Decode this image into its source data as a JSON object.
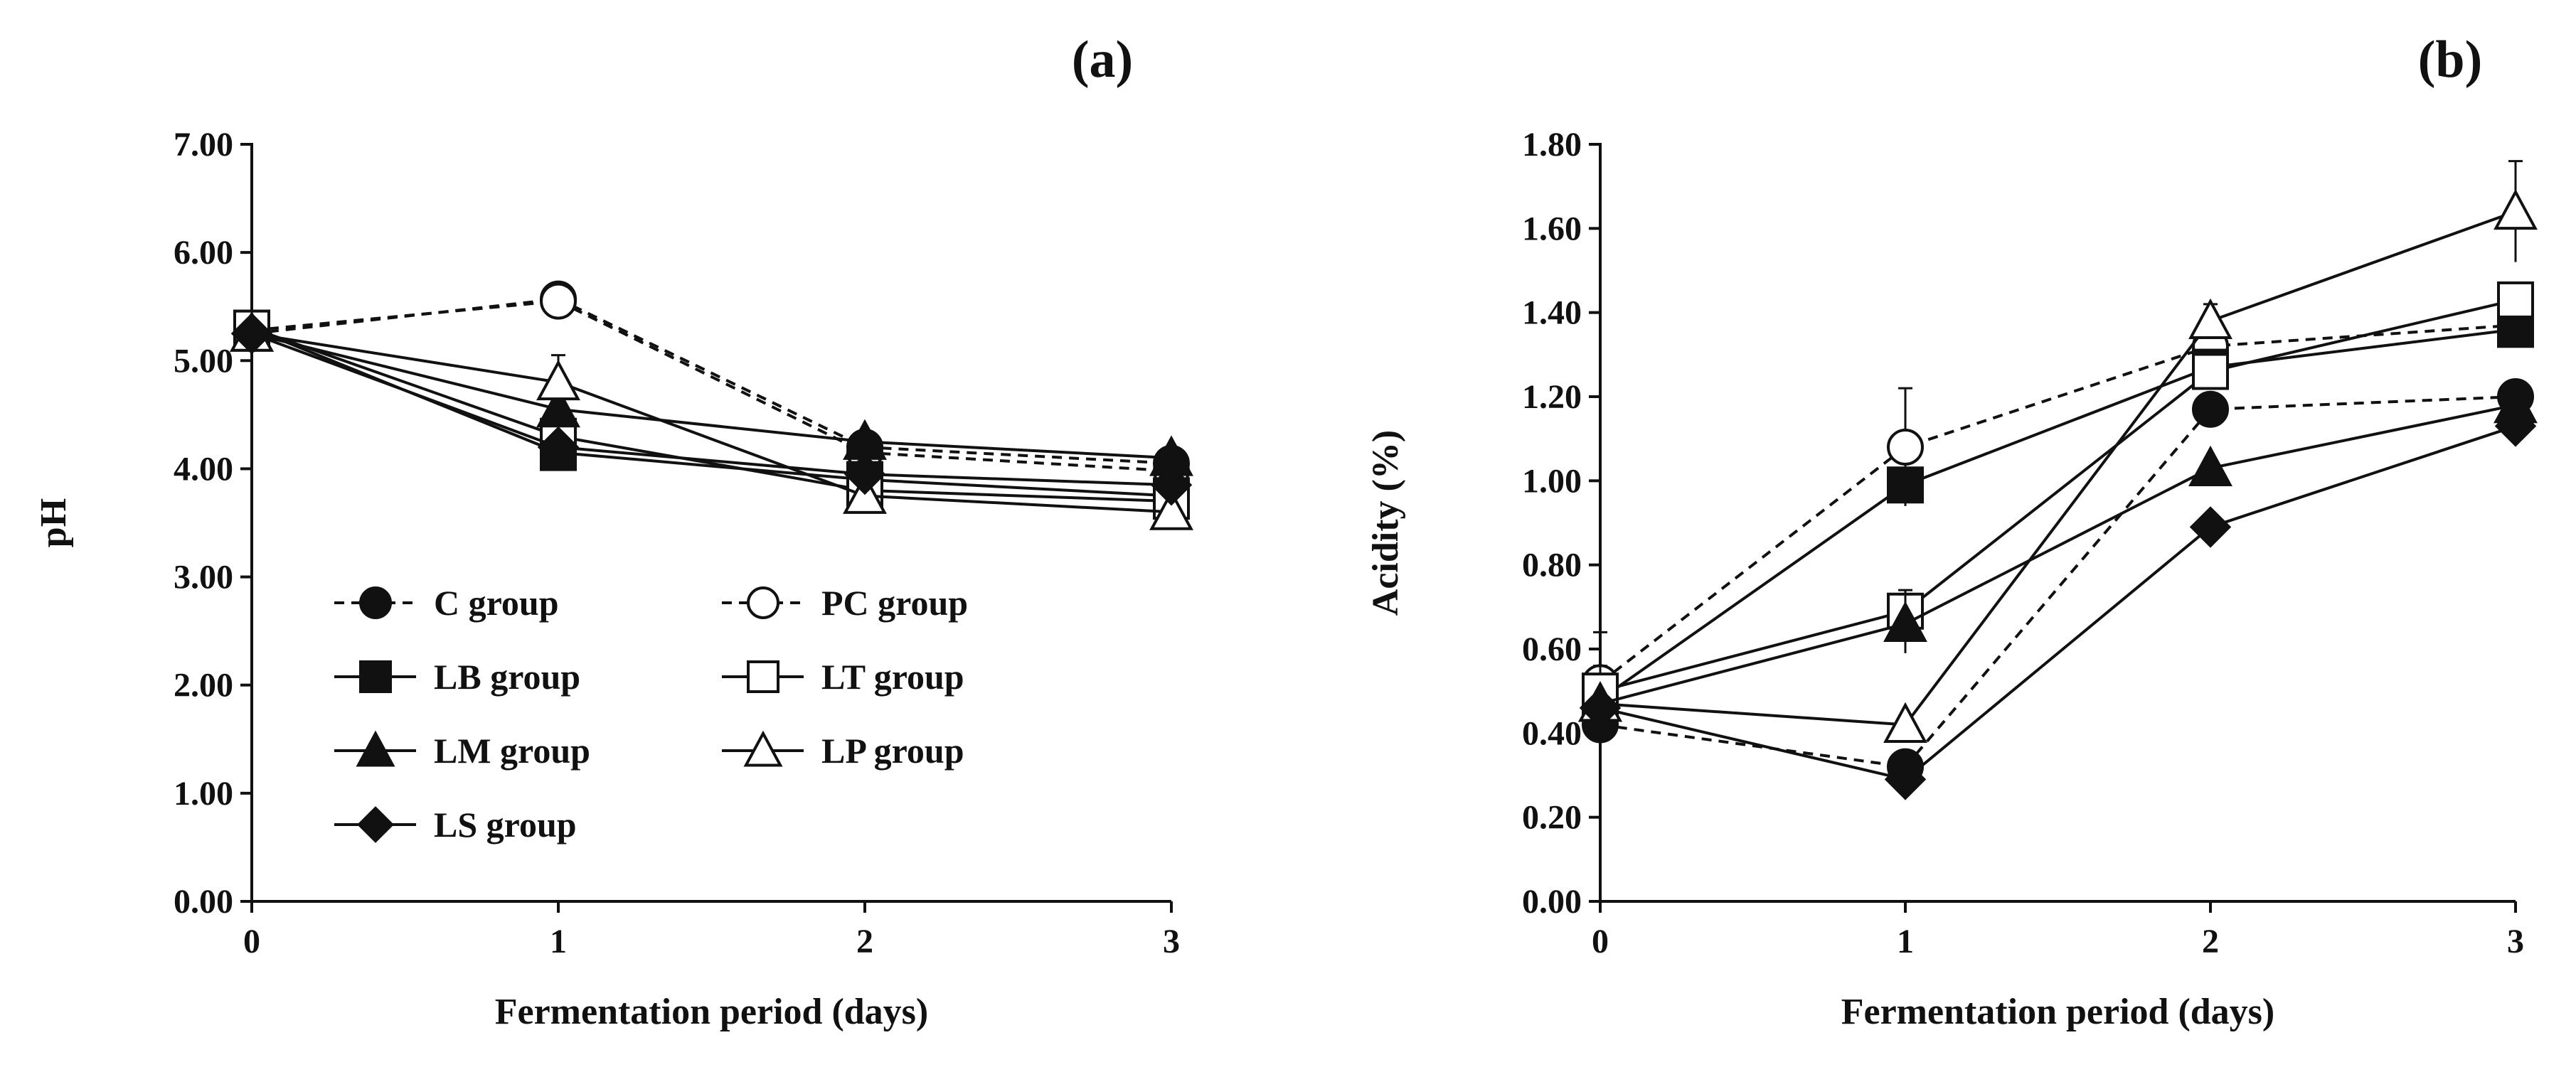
{
  "chart_data": [
    {
      "type": "line",
      "panel_label": "(a)",
      "xlabel": "Fermentation period (days)",
      "ylabel": "pH",
      "x": [
        0,
        1,
        2,
        3
      ],
      "x_tick_labels": [
        "0",
        "1",
        "2",
        "3"
      ],
      "xlim": [
        0,
        3
      ],
      "ylim": [
        0,
        7
      ],
      "y_ticks": [
        0,
        1,
        2,
        3,
        4,
        5,
        6,
        7
      ],
      "y_tick_labels": [
        "0.00",
        "1.00",
        "2.00",
        "3.00",
        "4.00",
        "5.00",
        "6.00",
        "7.00"
      ],
      "grid": false,
      "legend_position": "lower-left",
      "series": [
        {
          "name": "C group",
          "values": [
            5.25,
            5.57,
            4.2,
            4.05
          ],
          "marker": "circle-filled",
          "dashed": true,
          "errors": [
            0,
            0,
            0.1,
            0.08
          ]
        },
        {
          "name": "PC group",
          "values": [
            5.28,
            5.55,
            4.15,
            3.98
          ],
          "marker": "circle-open",
          "dashed": true,
          "errors": [
            0,
            0,
            0,
            0
          ]
        },
        {
          "name": "LB group",
          "values": [
            5.3,
            4.15,
            3.9,
            3.75
          ],
          "marker": "square-filled",
          "dashed": false,
          "errors": [
            0,
            0,
            0,
            0
          ]
        },
        {
          "name": "LT group",
          "values": [
            5.3,
            4.3,
            3.8,
            3.7
          ],
          "marker": "square-open",
          "dashed": false,
          "errors": [
            0,
            0,
            0,
            0
          ]
        },
        {
          "name": "LM group",
          "values": [
            5.25,
            4.55,
            4.25,
            4.1
          ],
          "marker": "triangle-filled",
          "dashed": false,
          "errors": [
            0,
            0,
            0,
            0
          ]
        },
        {
          "name": "LP group",
          "values": [
            5.25,
            4.8,
            3.75,
            3.6
          ],
          "marker": "triangle-open",
          "dashed": false,
          "errors": [
            0,
            0.25,
            0,
            0
          ]
        },
        {
          "name": "LS group",
          "values": [
            5.25,
            4.2,
            3.95,
            3.85
          ],
          "marker": "diamond-filled",
          "dashed": false,
          "errors": [
            0,
            0,
            0,
            0
          ]
        }
      ]
    },
    {
      "type": "line",
      "panel_label": "(b)",
      "xlabel": "Fermentation period (days)",
      "ylabel": "Acidity (%)",
      "x": [
        0,
        1,
        2,
        3
      ],
      "x_tick_labels": [
        "0",
        "1",
        "2",
        "3"
      ],
      "xlim": [
        0,
        3
      ],
      "ylim": [
        0,
        1.8
      ],
      "y_ticks": [
        0,
        0.2,
        0.4,
        0.6,
        0.8,
        1.0,
        1.2,
        1.4,
        1.6,
        1.8
      ],
      "y_tick_labels": [
        "0.00",
        "0.20",
        "0.40",
        "0.60",
        "0.80",
        "1.00",
        "1.20",
        "1.40",
        "1.60",
        "1.80"
      ],
      "grid": false,
      "series": [
        {
          "name": "C group",
          "values": [
            0.42,
            0.32,
            1.17,
            1.2
          ],
          "marker": "circle-filled",
          "dashed": true,
          "errors": [
            0,
            0,
            0,
            0
          ]
        },
        {
          "name": "PC group",
          "values": [
            0.52,
            1.08,
            1.32,
            1.37
          ],
          "marker": "circle-open",
          "dashed": true,
          "errors": [
            0.12,
            0.14,
            0,
            0
          ]
        },
        {
          "name": "LB group",
          "values": [
            0.48,
            0.99,
            1.27,
            1.36
          ],
          "marker": "square-filled",
          "dashed": false,
          "errors": [
            0,
            0,
            0,
            0
          ]
        },
        {
          "name": "LT group",
          "values": [
            0.5,
            0.69,
            1.26,
            1.43
          ],
          "marker": "square-open",
          "dashed": false,
          "errors": [
            0.06,
            0.05,
            0,
            0
          ]
        },
        {
          "name": "LM group",
          "values": [
            0.47,
            0.66,
            1.03,
            1.18
          ],
          "marker": "triangle-filled",
          "dashed": false,
          "errors": [
            0,
            0.07,
            0,
            0
          ]
        },
        {
          "name": "LP group",
          "values": [
            0.47,
            0.42,
            1.38,
            1.64
          ],
          "marker": "triangle-open",
          "dashed": false,
          "errors": [
            0,
            0,
            0.04,
            0.12
          ]
        },
        {
          "name": "LS group",
          "values": [
            0.46,
            0.29,
            0.89,
            1.13
          ],
          "marker": "diamond-filled",
          "dashed": false,
          "errors": [
            0,
            0,
            0,
            0
          ]
        }
      ]
    }
  ]
}
